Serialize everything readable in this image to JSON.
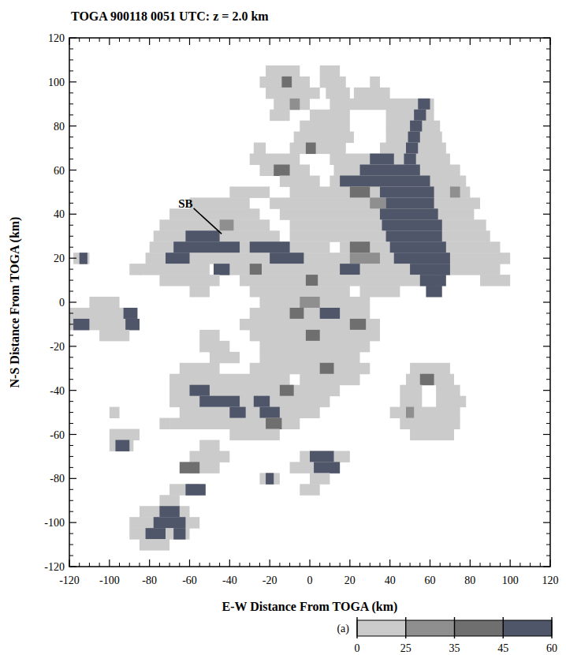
{
  "chart_data": {
    "type": "heatmap",
    "title": "TOGA 900118 0051 UTC: z = 2.0 km",
    "xlabel": "E-W Distance From TOGA (km)",
    "ylabel": "N-S Distance From TOGA (km)",
    "xlim": [
      -120,
      120
    ],
    "ylim": [
      -120,
      120
    ],
    "xticks": [
      -120,
      -100,
      -80,
      -60,
      -40,
      -20,
      0,
      20,
      40,
      60,
      80,
      100,
      120
    ],
    "yticks": [
      -120,
      -100,
      -80,
      -60,
      -40,
      -20,
      0,
      20,
      40,
      60,
      80,
      100,
      120
    ],
    "row_height": 5,
    "rows": [
      {
        "y": 105,
        "runs": [
          [
            -22,
            -5,
            20
          ],
          [
            5,
            15,
            20
          ]
        ]
      },
      {
        "y": 100,
        "runs": [
          [
            -25,
            0,
            20
          ],
          [
            5,
            18,
            20
          ],
          [
            30,
            35,
            20
          ],
          [
            -14,
            -9,
            40
          ]
        ]
      },
      {
        "y": 95,
        "runs": [
          [
            -22,
            5,
            20
          ],
          [
            8,
            20,
            20
          ],
          [
            22,
            40,
            20
          ]
        ]
      },
      {
        "y": 90,
        "runs": [
          [
            -18,
            0,
            20
          ],
          [
            10,
            62,
            20
          ],
          [
            -10,
            -5,
            30
          ],
          [
            54,
            60,
            50
          ]
        ]
      },
      {
        "y": 85,
        "runs": [
          [
            -20,
            -10,
            20
          ],
          [
            0,
            20,
            20
          ],
          [
            38,
            62,
            20
          ],
          [
            52,
            58,
            50
          ]
        ]
      },
      {
        "y": 80,
        "runs": [
          [
            -5,
            20,
            20
          ],
          [
            38,
            65,
            20
          ],
          [
            50,
            56,
            50
          ]
        ]
      },
      {
        "y": 75,
        "runs": [
          [
            -8,
            22,
            20
          ],
          [
            38,
            66,
            20
          ],
          [
            49,
            55,
            50
          ]
        ]
      },
      {
        "y": 70,
        "runs": [
          [
            -28,
            -22,
            20
          ],
          [
            -10,
            18,
            20
          ],
          [
            35,
            68,
            20
          ],
          [
            -2,
            3,
            40
          ],
          [
            48,
            54,
            50
          ]
        ]
      },
      {
        "y": 65,
        "runs": [
          [
            -30,
            -5,
            20
          ],
          [
            10,
            70,
            20
          ],
          [
            30,
            42,
            50
          ],
          [
            47,
            53,
            50
          ]
        ]
      },
      {
        "y": 60,
        "runs": [
          [
            -25,
            0,
            20
          ],
          [
            12,
            75,
            20
          ],
          [
            -18,
            -10,
            40
          ],
          [
            25,
            55,
            50
          ]
        ]
      },
      {
        "y": 55,
        "runs": [
          [
            -15,
            5,
            20
          ],
          [
            10,
            78,
            20
          ],
          [
            15,
            60,
            50
          ]
        ]
      },
      {
        "y": 50,
        "runs": [
          [
            -40,
            -20,
            20
          ],
          [
            -10,
            80,
            20
          ],
          [
            20,
            30,
            40
          ],
          [
            70,
            75,
            30
          ],
          [
            35,
            62,
            50
          ]
        ]
      },
      {
        "y": 45,
        "runs": [
          [
            -60,
            -30,
            20
          ],
          [
            -20,
            85,
            20
          ],
          [
            30,
            38,
            30
          ],
          [
            38,
            62,
            50
          ]
        ]
      },
      {
        "y": 40,
        "runs": [
          [
            -70,
            -25,
            20
          ],
          [
            -15,
            82,
            20
          ],
          [
            35,
            64,
            50
          ]
        ]
      },
      {
        "y": 35,
        "runs": [
          [
            -75,
            -20,
            20
          ],
          [
            -10,
            88,
            20
          ],
          [
            -45,
            -38,
            30
          ],
          [
            36,
            66,
            50
          ]
        ]
      },
      {
        "y": 30,
        "runs": [
          [
            -78,
            -15,
            20
          ],
          [
            -10,
            90,
            20
          ],
          [
            -62,
            -45,
            50
          ],
          [
            38,
            66,
            50
          ]
        ]
      },
      {
        "y": 25,
        "runs": [
          [
            -80,
            10,
            20
          ],
          [
            15,
            95,
            20
          ],
          [
            20,
            30,
            40
          ],
          [
            -68,
            -35,
            50
          ],
          [
            -30,
            -10,
            50
          ],
          [
            40,
            68,
            50
          ]
        ]
      },
      {
        "y": 20,
        "runs": [
          [
            -82,
            100,
            20
          ],
          [
            -118,
            -110,
            20
          ],
          [
            20,
            35,
            30
          ],
          [
            -115,
            -111,
            50
          ],
          [
            -72,
            -60,
            50
          ],
          [
            -20,
            -3,
            50
          ],
          [
            42,
            70,
            50
          ]
        ]
      },
      {
        "y": 15,
        "runs": [
          [
            -90,
            -84,
            20
          ],
          [
            -85,
            -50,
            20
          ],
          [
            -45,
            95,
            20
          ],
          [
            -30,
            -24,
            40
          ],
          [
            -48,
            -40,
            50
          ],
          [
            15,
            25,
            50
          ],
          [
            50,
            70,
            50
          ]
        ]
      },
      {
        "y": 10,
        "runs": [
          [
            -75,
            -45,
            20
          ],
          [
            -35,
            65,
            20
          ],
          [
            85,
            100,
            20
          ],
          [
            -2,
            4,
            40
          ],
          [
            55,
            68,
            50
          ]
        ]
      },
      {
        "y": 5,
        "runs": [
          [
            -60,
            -50,
            20
          ],
          [
            -30,
            20,
            20
          ],
          [
            25,
            45,
            20
          ],
          [
            58,
            66,
            50
          ]
        ]
      },
      {
        "y": 0,
        "runs": [
          [
            -110,
            -95,
            20
          ],
          [
            -25,
            30,
            20
          ],
          [
            -5,
            5,
            30
          ]
        ]
      },
      {
        "y": -5,
        "runs": [
          [
            -120,
            -90,
            20
          ],
          [
            -30,
            30,
            20
          ],
          [
            -10,
            -3,
            40
          ],
          [
            -93,
            -86,
            50
          ],
          [
            5,
            15,
            50
          ]
        ]
      },
      {
        "y": -10,
        "runs": [
          [
            -120,
            -85,
            20
          ],
          [
            -35,
            35,
            20
          ],
          [
            20,
            28,
            40
          ],
          [
            -118,
            -110,
            50
          ],
          [
            -92,
            -85,
            50
          ]
        ]
      },
      {
        "y": -15,
        "runs": [
          [
            -105,
            -90,
            20
          ],
          [
            -55,
            -45,
            20
          ],
          [
            -30,
            35,
            20
          ],
          [
            -2,
            5,
            40
          ]
        ]
      },
      {
        "y": -20,
        "runs": [
          [
            -55,
            -40,
            20
          ],
          [
            -25,
            30,
            20
          ]
        ]
      },
      {
        "y": -25,
        "runs": [
          [
            -50,
            -35,
            20
          ],
          [
            -25,
            25,
            20
          ]
        ]
      },
      {
        "y": -30,
        "runs": [
          [
            -65,
            -45,
            20
          ],
          [
            -30,
            30,
            20
          ],
          [
            50,
            70,
            20
          ],
          [
            5,
            12,
            40
          ]
        ]
      },
      {
        "y": -35,
        "runs": [
          [
            -70,
            -10,
            20
          ],
          [
            -5,
            25,
            20
          ],
          [
            48,
            72,
            20
          ],
          [
            55,
            62,
            40
          ]
        ]
      },
      {
        "y": -40,
        "runs": [
          [
            -70,
            15,
            20
          ],
          [
            45,
            56,
            20
          ],
          [
            63,
            75,
            20
          ],
          [
            -15,
            -8,
            40
          ],
          [
            -60,
            -50,
            50
          ]
        ]
      },
      {
        "y": -45,
        "runs": [
          [
            -70,
            10,
            20
          ],
          [
            45,
            56,
            20
          ],
          [
            63,
            78,
            20
          ],
          [
            -55,
            -35,
            50
          ],
          [
            -28,
            -20,
            50
          ]
        ]
      },
      {
        "y": -50,
        "runs": [
          [
            -100,
            -95,
            20
          ],
          [
            -65,
            5,
            20
          ],
          [
            40,
            75,
            20
          ],
          [
            48,
            52,
            30
          ],
          [
            -40,
            -32,
            50
          ],
          [
            -25,
            -15,
            50
          ]
        ]
      },
      {
        "y": -55,
        "runs": [
          [
            -75,
            -70,
            20
          ],
          [
            -70,
            -5,
            20
          ],
          [
            45,
            75,
            20
          ],
          [
            -22,
            -14,
            40
          ]
        ]
      },
      {
        "y": -60,
        "runs": [
          [
            -100,
            -85,
            20
          ],
          [
            -40,
            -15,
            20
          ],
          [
            50,
            72,
            20
          ]
        ]
      },
      {
        "y": -65,
        "runs": [
          [
            -100,
            -88,
            20
          ],
          [
            -55,
            -45,
            20
          ],
          [
            -97,
            -90,
            50
          ]
        ]
      },
      {
        "y": -70,
        "runs": [
          [
            -60,
            -40,
            20
          ],
          [
            -5,
            20,
            20
          ],
          [
            0,
            12,
            50
          ]
        ]
      },
      {
        "y": -75,
        "runs": [
          [
            -60,
            -45,
            20
          ],
          [
            -10,
            15,
            20
          ],
          [
            -65,
            -55,
            40
          ],
          [
            2,
            15,
            50
          ]
        ]
      },
      {
        "y": -80,
        "runs": [
          [
            -25,
            -15,
            20
          ],
          [
            0,
            10,
            20
          ],
          [
            -22,
            -18,
            50
          ]
        ]
      },
      {
        "y": -85,
        "runs": [
          [
            -70,
            -55,
            20
          ],
          [
            -5,
            5,
            20
          ],
          [
            -62,
            -52,
            50
          ]
        ]
      },
      {
        "y": -90,
        "runs": [
          [
            -75,
            -65,
            20
          ]
        ]
      },
      {
        "y": -95,
        "runs": [
          [
            -85,
            -60,
            20
          ],
          [
            -75,
            -65,
            50
          ]
        ]
      },
      {
        "y": -100,
        "runs": [
          [
            -90,
            -55,
            20
          ],
          [
            -78,
            -62,
            50
          ]
        ]
      },
      {
        "y": -105,
        "runs": [
          [
            -90,
            -60,
            20
          ],
          [
            -82,
            -72,
            50
          ],
          [
            -68,
            -62,
            50
          ]
        ]
      },
      {
        "y": -110,
        "runs": [
          [
            -85,
            -70,
            20
          ]
        ]
      }
    ],
    "colorbar": {
      "bounds": [
        0,
        25,
        35,
        45,
        60
      ],
      "ticks": [
        0,
        25,
        35,
        45,
        60
      ],
      "colors": [
        "#cbcbcb",
        "#8f8f8f",
        "#6f6f6f",
        "#50566a"
      ]
    },
    "annotations": [
      {
        "text": "SB",
        "x": -62,
        "y": 43,
        "arrow_to": [
          -44,
          31
        ]
      }
    ],
    "panel_label": "(a)"
  }
}
